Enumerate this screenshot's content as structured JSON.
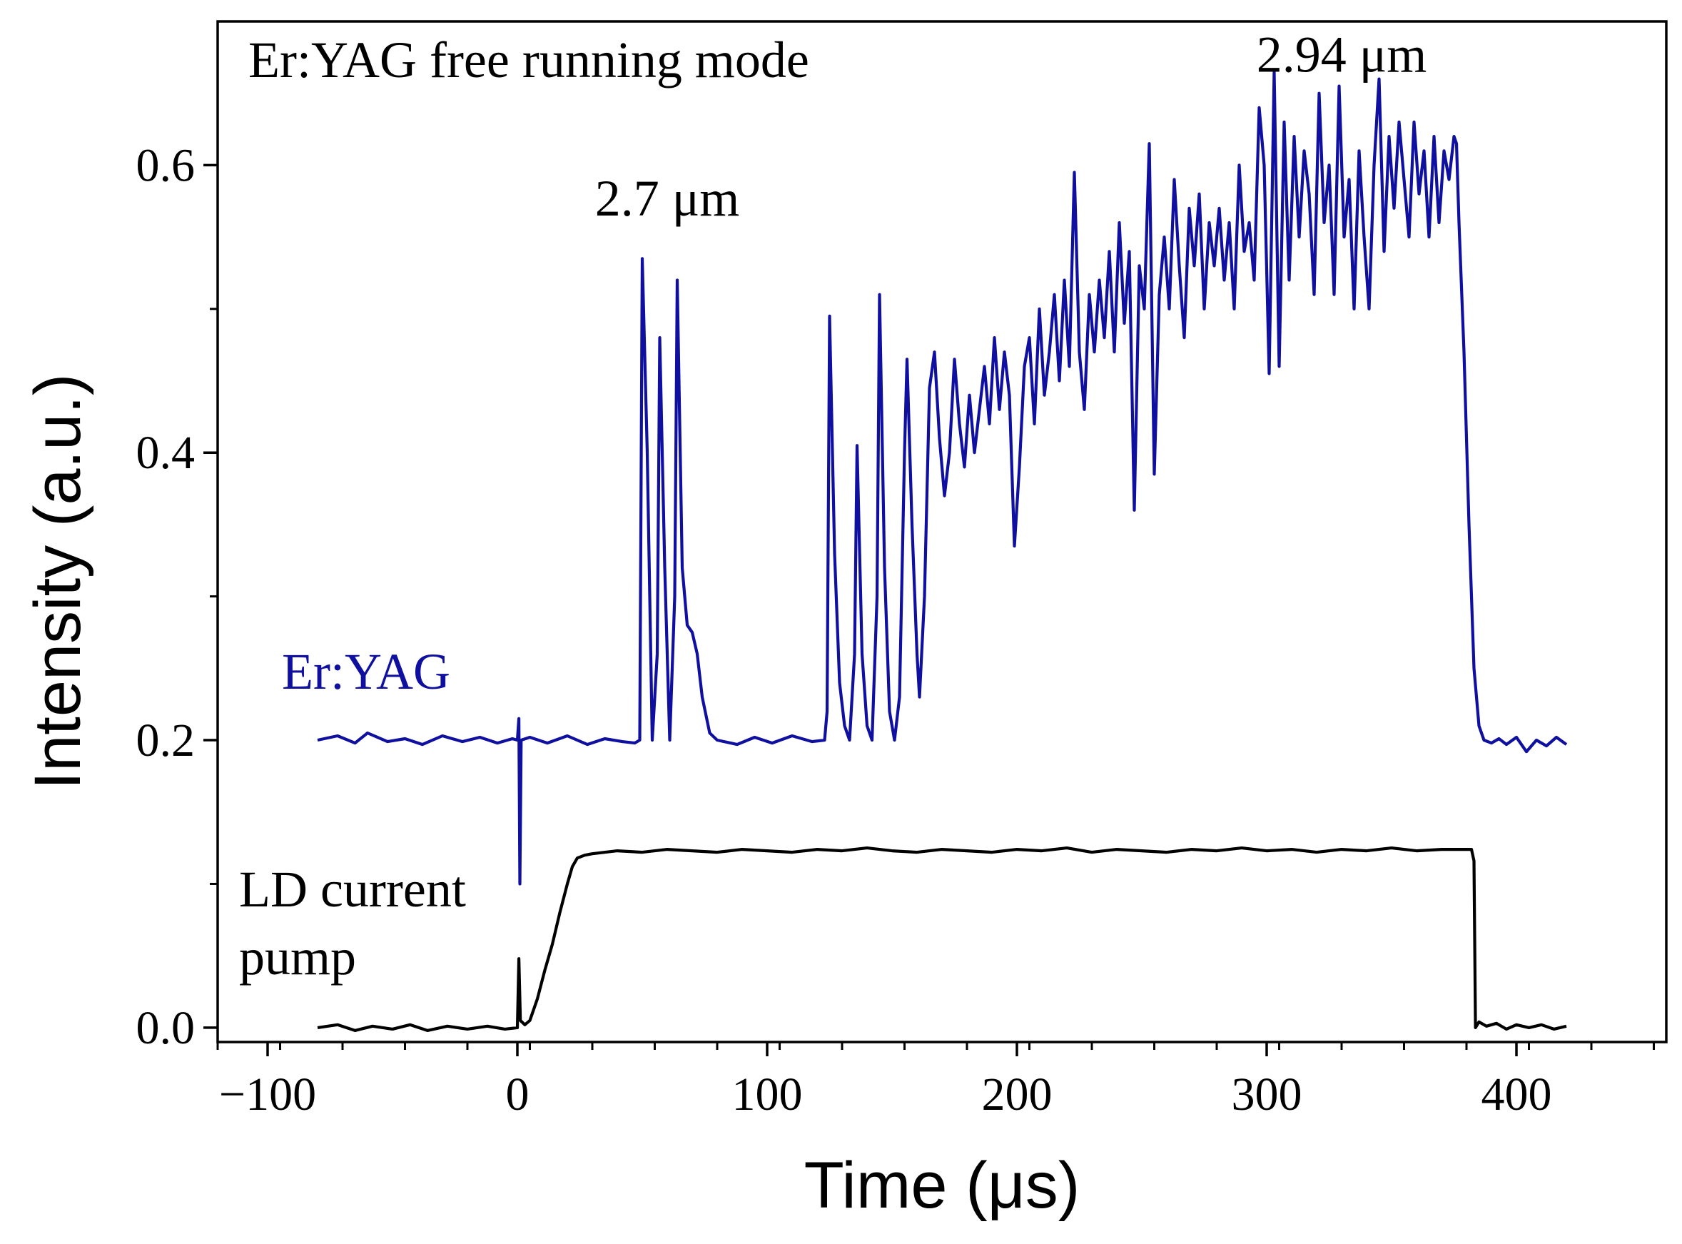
{
  "chart_data": {
    "type": "line",
    "title": "Er:YAG free running mode",
    "xlabel": "Time (μs)",
    "ylabel": "Intensity (a.u.)",
    "xlim": [
      -120,
      460
    ],
    "ylim": [
      -0.01,
      0.7
    ],
    "x_ticks": [
      -100,
      0,
      100,
      200,
      300,
      400
    ],
    "x_tick_labels": [
      "−100",
      "0",
      "100",
      "200",
      "300",
      "400"
    ],
    "y_ticks": [
      0.0,
      0.2,
      0.4,
      0.6
    ],
    "y_tick_labels": [
      "0.0",
      "0.2",
      "0.4",
      "0.6"
    ],
    "grid": false,
    "colors": {
      "erbium": "#1010a0",
      "pump": "#000000",
      "axis": "#000000"
    },
    "annotations": [
      {
        "text": "2.7 μm",
        "x": 60,
        "y": 0.565
      },
      {
        "text": "2.94 μm",
        "x": 330,
        "y": 0.665
      }
    ],
    "series": [
      {
        "name": "Er:YAG",
        "label": "Er:YAG",
        "color": "#1010a0",
        "points": [
          [
            -80,
            0.2
          ],
          [
            -72,
            0.203
          ],
          [
            -65,
            0.198
          ],
          [
            -60,
            0.205
          ],
          [
            -52,
            0.199
          ],
          [
            -45,
            0.201
          ],
          [
            -38,
            0.197
          ],
          [
            -30,
            0.203
          ],
          [
            -22,
            0.199
          ],
          [
            -15,
            0.202
          ],
          [
            -8,
            0.198
          ],
          [
            -2,
            0.201
          ],
          [
            0,
            0.2
          ],
          [
            0.6,
            0.215
          ],
          [
            1.0,
            0.1
          ],
          [
            1.5,
            0.2
          ],
          [
            5,
            0.202
          ],
          [
            12,
            0.198
          ],
          [
            20,
            0.203
          ],
          [
            28,
            0.197
          ],
          [
            35,
            0.201
          ],
          [
            42,
            0.199
          ],
          [
            47,
            0.198
          ],
          [
            49,
            0.2
          ],
          [
            50,
            0.535
          ],
          [
            52,
            0.4
          ],
          [
            54,
            0.2
          ],
          [
            56,
            0.26
          ],
          [
            57,
            0.48
          ],
          [
            59,
            0.32
          ],
          [
            61,
            0.2
          ],
          [
            63,
            0.3
          ],
          [
            64,
            0.52
          ],
          [
            66,
            0.32
          ],
          [
            68,
            0.28
          ],
          [
            70,
            0.275
          ],
          [
            72,
            0.26
          ],
          [
            74,
            0.23
          ],
          [
            77,
            0.205
          ],
          [
            80,
            0.2
          ],
          [
            88,
            0.197
          ],
          [
            95,
            0.202
          ],
          [
            102,
            0.198
          ],
          [
            110,
            0.203
          ],
          [
            118,
            0.199
          ],
          [
            123,
            0.2
          ],
          [
            124,
            0.22
          ],
          [
            125,
            0.495
          ],
          [
            127,
            0.33
          ],
          [
            129,
            0.24
          ],
          [
            131,
            0.21
          ],
          [
            133,
            0.2
          ],
          [
            135,
            0.26
          ],
          [
            136,
            0.405
          ],
          [
            138,
            0.26
          ],
          [
            140,
            0.21
          ],
          [
            142,
            0.2
          ],
          [
            144,
            0.3
          ],
          [
            145,
            0.51
          ],
          [
            147,
            0.32
          ],
          [
            149,
            0.22
          ],
          [
            151,
            0.2
          ],
          [
            153,
            0.23
          ],
          [
            155,
            0.4
          ],
          [
            156,
            0.465
          ],
          [
            158,
            0.35
          ],
          [
            160,
            0.26
          ],
          [
            161,
            0.23
          ],
          [
            163,
            0.3
          ],
          [
            165,
            0.445
          ],
          [
            167,
            0.47
          ],
          [
            169,
            0.41
          ],
          [
            171,
            0.37
          ],
          [
            173,
            0.4
          ],
          [
            175,
            0.465
          ],
          [
            177,
            0.42
          ],
          [
            179,
            0.39
          ],
          [
            181,
            0.44
          ],
          [
            183,
            0.4
          ],
          [
            185,
            0.43
          ],
          [
            187,
            0.46
          ],
          [
            189,
            0.42
          ],
          [
            191,
            0.48
          ],
          [
            193,
            0.43
          ],
          [
            195,
            0.47
          ],
          [
            197,
            0.44
          ],
          [
            199,
            0.335
          ],
          [
            201,
            0.39
          ],
          [
            203,
            0.46
          ],
          [
            205,
            0.48
          ],
          [
            207,
            0.42
          ],
          [
            209,
            0.5
          ],
          [
            211,
            0.44
          ],
          [
            213,
            0.47
          ],
          [
            215,
            0.51
          ],
          [
            217,
            0.45
          ],
          [
            219,
            0.52
          ],
          [
            221,
            0.46
          ],
          [
            223,
            0.595
          ],
          [
            225,
            0.47
          ],
          [
            227,
            0.43
          ],
          [
            229,
            0.51
          ],
          [
            231,
            0.47
          ],
          [
            233,
            0.52
          ],
          [
            235,
            0.48
          ],
          [
            237,
            0.54
          ],
          [
            239,
            0.47
          ],
          [
            241,
            0.56
          ],
          [
            243,
            0.49
          ],
          [
            245,
            0.54
          ],
          [
            247,
            0.36
          ],
          [
            249,
            0.53
          ],
          [
            251,
            0.5
          ],
          [
            253,
            0.615
          ],
          [
            255,
            0.385
          ],
          [
            257,
            0.51
          ],
          [
            259,
            0.55
          ],
          [
            261,
            0.5
          ],
          [
            263,
            0.59
          ],
          [
            265,
            0.53
          ],
          [
            267,
            0.48
          ],
          [
            269,
            0.57
          ],
          [
            271,
            0.53
          ],
          [
            273,
            0.58
          ],
          [
            275,
            0.5
          ],
          [
            277,
            0.56
          ],
          [
            279,
            0.53
          ],
          [
            281,
            0.57
          ],
          [
            283,
            0.52
          ],
          [
            285,
            0.56
          ],
          [
            287,
            0.5
          ],
          [
            289,
            0.6
          ],
          [
            291,
            0.54
          ],
          [
            293,
            0.56
          ],
          [
            295,
            0.52
          ],
          [
            297,
            0.64
          ],
          [
            299,
            0.6
          ],
          [
            301,
            0.455
          ],
          [
            303,
            0.665
          ],
          [
            305,
            0.46
          ],
          [
            307,
            0.63
          ],
          [
            309,
            0.52
          ],
          [
            311,
            0.62
          ],
          [
            313,
            0.55
          ],
          [
            315,
            0.61
          ],
          [
            317,
            0.58
          ],
          [
            319,
            0.51
          ],
          [
            321,
            0.65
          ],
          [
            323,
            0.56
          ],
          [
            325,
            0.6
          ],
          [
            327,
            0.51
          ],
          [
            329,
            0.655
          ],
          [
            331,
            0.55
          ],
          [
            333,
            0.59
          ],
          [
            335,
            0.5
          ],
          [
            337,
            0.61
          ],
          [
            339,
            0.55
          ],
          [
            341,
            0.5
          ],
          [
            343,
            0.6
          ],
          [
            345,
            0.66
          ],
          [
            347,
            0.54
          ],
          [
            349,
            0.62
          ],
          [
            351,
            0.57
          ],
          [
            353,
            0.63
          ],
          [
            355,
            0.59
          ],
          [
            357,
            0.55
          ],
          [
            359,
            0.63
          ],
          [
            361,
            0.58
          ],
          [
            363,
            0.61
          ],
          [
            365,
            0.55
          ],
          [
            367,
            0.62
          ],
          [
            369,
            0.56
          ],
          [
            371,
            0.61
          ],
          [
            373,
            0.59
          ],
          [
            375,
            0.62
          ],
          [
            376,
            0.615
          ],
          [
            377,
            0.56
          ],
          [
            379,
            0.47
          ],
          [
            381,
            0.35
          ],
          [
            383,
            0.25
          ],
          [
            385,
            0.21
          ],
          [
            387,
            0.2
          ],
          [
            390,
            0.198
          ],
          [
            393,
            0.201
          ],
          [
            396,
            0.197
          ],
          [
            400,
            0.202
          ],
          [
            404,
            0.192
          ],
          [
            408,
            0.2
          ],
          [
            412,
            0.196
          ],
          [
            416,
            0.202
          ],
          [
            420,
            0.197
          ]
        ]
      },
      {
        "name": "LD current pump",
        "label": "LD current\npump",
        "color": "#000000",
        "points": [
          [
            -80,
            0.0
          ],
          [
            -72,
            0.002
          ],
          [
            -65,
            -0.002
          ],
          [
            -58,
            0.001
          ],
          [
            -50,
            -0.001
          ],
          [
            -43,
            0.002
          ],
          [
            -36,
            -0.002
          ],
          [
            -28,
            0.001
          ],
          [
            -20,
            -0.001
          ],
          [
            -12,
            0.001
          ],
          [
            -5,
            -0.001
          ],
          [
            0,
            0.0
          ],
          [
            0.6,
            0.048
          ],
          [
            1.2,
            0.005
          ],
          [
            3,
            0.002
          ],
          [
            5,
            0.005
          ],
          [
            8,
            0.02
          ],
          [
            11,
            0.04
          ],
          [
            14,
            0.058
          ],
          [
            17,
            0.08
          ],
          [
            20,
            0.1
          ],
          [
            22,
            0.112
          ],
          [
            24,
            0.118
          ],
          [
            27,
            0.12
          ],
          [
            30,
            0.121
          ],
          [
            40,
            0.123
          ],
          [
            50,
            0.122
          ],
          [
            60,
            0.124
          ],
          [
            70,
            0.123
          ],
          [
            80,
            0.122
          ],
          [
            90,
            0.124
          ],
          [
            100,
            0.123
          ],
          [
            110,
            0.122
          ],
          [
            120,
            0.124
          ],
          [
            130,
            0.123
          ],
          [
            140,
            0.125
          ],
          [
            150,
            0.123
          ],
          [
            160,
            0.122
          ],
          [
            170,
            0.124
          ],
          [
            180,
            0.123
          ],
          [
            190,
            0.122
          ],
          [
            200,
            0.124
          ],
          [
            210,
            0.123
          ],
          [
            220,
            0.125
          ],
          [
            230,
            0.122
          ],
          [
            240,
            0.124
          ],
          [
            250,
            0.123
          ],
          [
            260,
            0.122
          ],
          [
            270,
            0.124
          ],
          [
            280,
            0.123
          ],
          [
            290,
            0.125
          ],
          [
            300,
            0.123
          ],
          [
            310,
            0.124
          ],
          [
            320,
            0.122
          ],
          [
            330,
            0.124
          ],
          [
            340,
            0.123
          ],
          [
            350,
            0.125
          ],
          [
            360,
            0.123
          ],
          [
            370,
            0.124
          ],
          [
            382,
            0.124
          ],
          [
            383,
            0.116
          ],
          [
            383.6,
            0.0
          ],
          [
            385,
            0.004
          ],
          [
            388,
            0.001
          ],
          [
            392,
            0.003
          ],
          [
            396,
            -0.001
          ],
          [
            400,
            0.002
          ],
          [
            405,
            0.0
          ],
          [
            410,
            0.002
          ],
          [
            415,
            -0.001
          ],
          [
            420,
            0.001
          ]
        ]
      }
    ]
  }
}
